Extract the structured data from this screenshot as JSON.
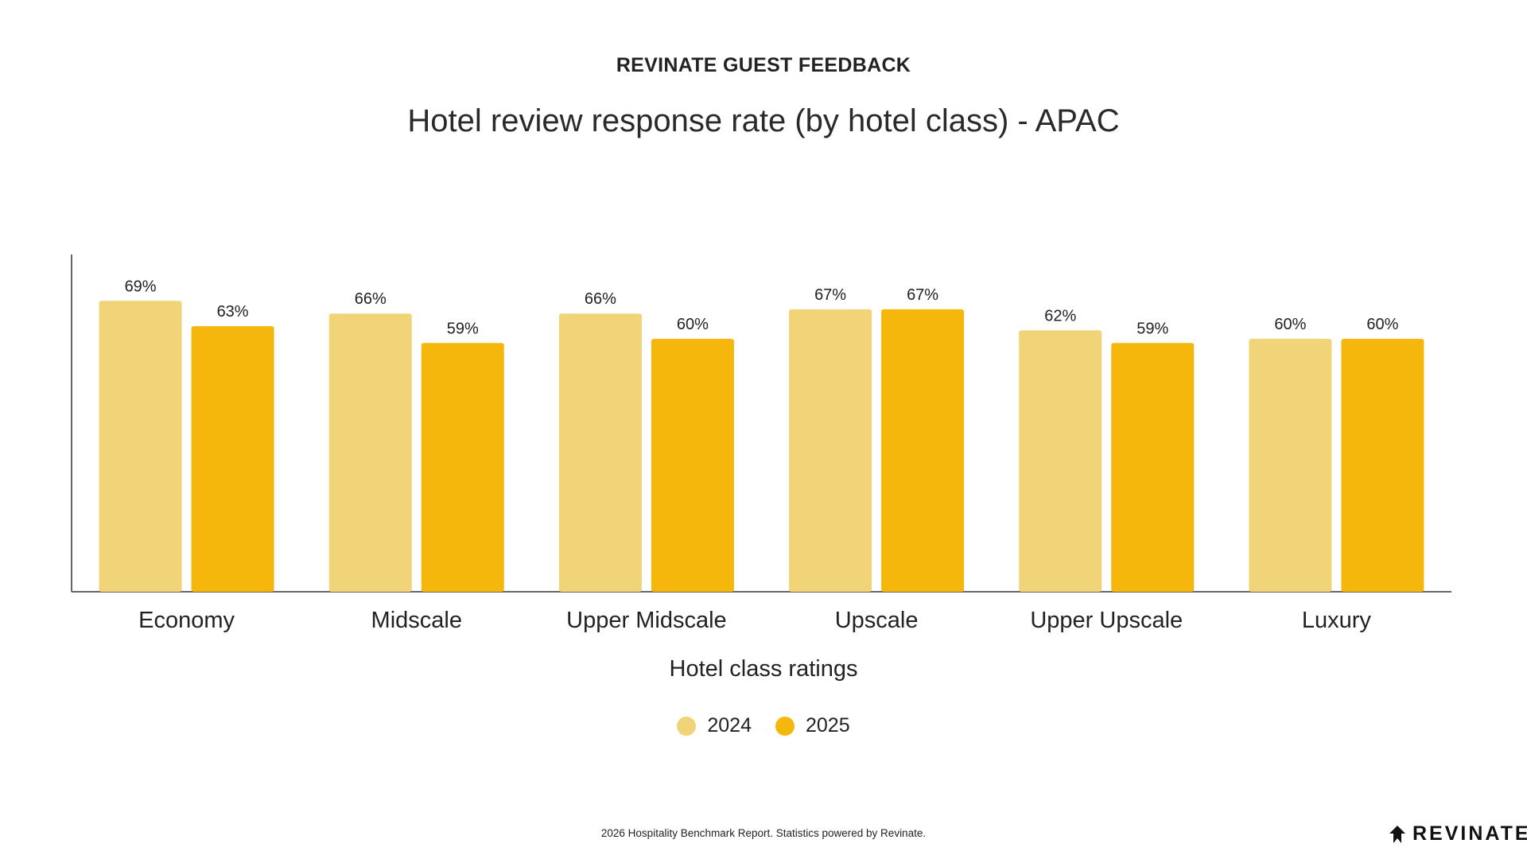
{
  "header": {
    "eyebrow": "REVINATE GUEST FEEDBACK",
    "title": "Hotel review response rate (by hotel class) - APAC"
  },
  "chart_data": {
    "type": "bar",
    "categories": [
      "Economy",
      "Midscale",
      "Upper Midscale",
      "Upscale",
      "Upper Upscale",
      "Luxury"
    ],
    "series": [
      {
        "name": "2024",
        "color": "#F2D478",
        "values": [
          69,
          66,
          66,
          67,
          62,
          60
        ],
        "labels": [
          "69%",
          "66%",
          "66%",
          "67%",
          "62%",
          "60%"
        ]
      },
      {
        "name": "2025",
        "color": "#F5B70C",
        "values": [
          63,
          59,
          60,
          67,
          59,
          60
        ],
        "labels": [
          "63%",
          "59%",
          "60%",
          "67%",
          "59%",
          "60%"
        ]
      }
    ],
    "title": "Hotel review response rate (by hotel class) - APAC",
    "xlabel": "Hotel class ratings",
    "ylabel": "",
    "ylim": [
      0,
      80
    ],
    "grid": false,
    "legend": "bottom-center"
  },
  "footer": {
    "note": "2026 Hospitality Benchmark Report. Statistics powered by Revinate.",
    "logo_text": "REVINATE",
    "logo_icon": "revinate-logo-icon"
  }
}
